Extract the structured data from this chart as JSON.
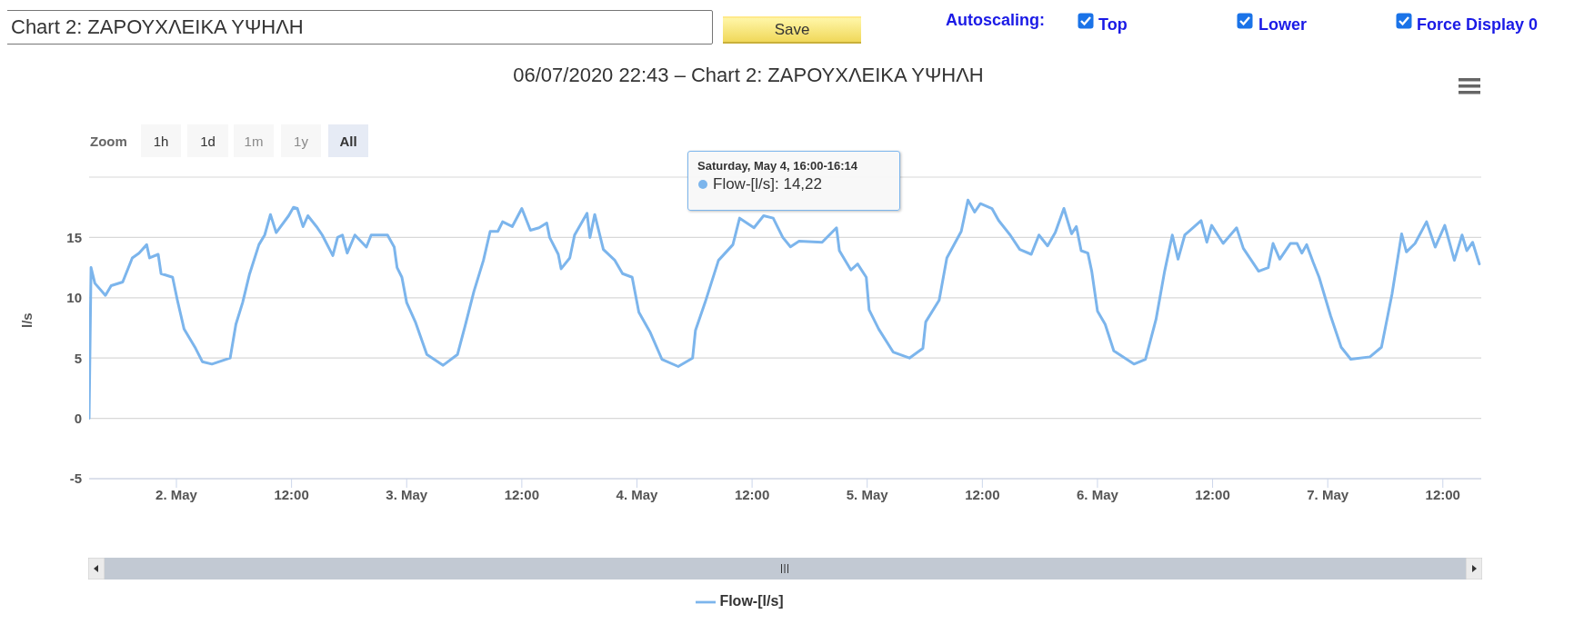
{
  "chart_data": {
    "type": "line",
    "title": "06/07/2020 22:43 – Chart 2: ΖΑΡΟΥΧΛΕΙΚΑ ΥΨΗΛΗ",
    "ylabel": "l/s",
    "x": [
      "2020-05-01T14:54",
      "2020-05-01T15:06",
      "2020-05-01T15:30",
      "2020-05-01T16:36",
      "2020-05-01T17:12",
      "2020-05-01T18:24",
      "2020-05-01T19:24",
      "2020-05-01T20:06",
      "2020-05-01T20:54",
      "2020-05-01T21:12",
      "2020-05-01T22:06",
      "2020-05-01T22:24",
      "2020-05-01T23:36",
      "2020-05-02T00:06",
      "2020-05-02T00:48",
      "2020-05-02T02:00",
      "2020-05-02T02:42",
      "2020-05-02T03:42",
      "2020-05-02T05:36",
      "2020-05-02T06:12",
      "2020-05-02T06:54",
      "2020-05-02T07:36",
      "2020-05-02T08:36",
      "2020-05-02T09:12",
      "2020-05-02T09:48",
      "2020-05-02T10:24",
      "2020-05-02T11:42",
      "2020-05-02T12:12",
      "2020-05-02T12:36",
      "2020-05-02T13:12",
      "2020-05-02T13:42",
      "2020-05-02T14:36",
      "2020-05-02T15:12",
      "2020-05-02T16:18",
      "2020-05-02T16:48",
      "2020-05-02T17:18",
      "2020-05-02T17:48",
      "2020-05-02T18:36",
      "2020-05-02T19:48",
      "2020-05-02T20:18",
      "2020-05-02T22:00",
      "2020-05-02T22:42",
      "2020-05-02T23:00",
      "2020-05-02T23:30",
      "2020-05-03T00:00",
      "2020-05-03T00:54",
      "2020-05-03T02:06",
      "2020-05-03T03:48",
      "2020-05-03T05:18",
      "2020-05-03T06:06",
      "2020-05-03T07:00",
      "2020-05-03T08:00",
      "2020-05-03T08:42",
      "2020-05-03T09:30",
      "2020-05-03T10:00",
      "2020-05-03T11:00",
      "2020-05-03T12:00",
      "2020-05-03T12:54",
      "2020-05-03T13:48",
      "2020-05-03T14:36",
      "2020-05-03T14:54",
      "2020-05-03T15:48",
      "2020-05-03T16:06",
      "2020-05-03T17:00",
      "2020-05-03T17:30",
      "2020-05-03T18:48",
      "2020-05-03T19:06",
      "2020-05-03T19:36",
      "2020-05-03T20:30",
      "2020-05-03T21:42",
      "2020-05-03T22:30",
      "2020-05-03T23:30",
      "2020-05-04T00:12",
      "2020-05-04T01:24",
      "2020-05-04T02:36",
      "2020-05-04T04:18",
      "2020-05-04T05:48",
      "2020-05-04T06:06",
      "2020-05-04T07:06",
      "2020-05-04T08:30",
      "2020-05-04T10:00",
      "2020-05-04T10:42",
      "2020-05-04T12:12",
      "2020-05-04T13:12",
      "2020-05-04T14:12",
      "2020-05-04T15:12",
      "2020-05-04T16:00",
      "2020-05-04T16:54",
      "2020-05-04T19:18",
      "2020-05-04T20:48",
      "2020-05-04T21:06",
      "2020-05-04T22:18",
      "2020-05-04T23:00",
      "2020-05-04T23:54",
      "2020-05-05T00:12",
      "2020-05-05T01:12",
      "2020-05-05T02:42",
      "2020-05-05T04:24",
      "2020-05-05T05:48",
      "2020-05-05T06:06",
      "2020-05-05T07:30",
      "2020-05-05T08:18",
      "2020-05-05T09:48",
      "2020-05-05T10:30",
      "2020-05-05T11:12",
      "2020-05-05T11:48",
      "2020-05-05T13:00",
      "2020-05-05T13:42",
      "2020-05-05T14:54",
      "2020-05-05T15:54",
      "2020-05-05T17:06",
      "2020-05-05T17:54",
      "2020-05-05T18:48",
      "2020-05-05T19:36",
      "2020-05-05T20:30",
      "2020-05-05T21:18",
      "2020-05-05T21:48",
      "2020-05-05T22:18",
      "2020-05-05T23:00",
      "2020-05-05T23:24",
      "2020-05-06T00:00",
      "2020-05-06T00:48",
      "2020-05-06T01:42",
      "2020-05-06T03:48",
      "2020-05-06T05:00",
      "2020-05-06T06:06",
      "2020-05-06T07:00",
      "2020-05-06T07:48",
      "2020-05-06T08:24",
      "2020-05-06T09:06",
      "2020-05-06T10:48",
      "2020-05-06T11:24",
      "2020-05-06T11:54",
      "2020-05-06T13:06",
      "2020-05-06T14:30",
      "2020-05-06T15:12",
      "2020-05-06T16:48",
      "2020-05-06T17:48",
      "2020-05-06T18:18",
      "2020-05-06T19:00",
      "2020-05-06T20:06",
      "2020-05-06T20:48",
      "2020-05-06T21:18",
      "2020-05-06T21:48",
      "2020-05-06T22:30",
      "2020-05-06T23:06",
      "2020-05-07T00:18",
      "2020-05-07T01:24",
      "2020-05-07T02:24",
      "2020-05-07T04:24",
      "2020-05-07T05:36",
      "2020-05-07T06:42",
      "2020-05-07T07:42",
      "2020-05-07T08:12",
      "2020-05-07T09:06",
      "2020-05-07T10:18",
      "2020-05-07T11:12",
      "2020-05-07T12:12",
      "2020-05-07T13:12",
      "2020-05-07T14:00",
      "2020-05-07T14:30",
      "2020-05-07T15:06",
      "2020-05-07T15:48"
    ],
    "series": [
      {
        "name": "Flow-[l/s]",
        "color": "#7cb5ec",
        "values": [
          0,
          12.5,
          11.2,
          10.2,
          11.0,
          11.3,
          13.3,
          13.7,
          14.4,
          13.3,
          13.6,
          12.0,
          11.7,
          9.8,
          7.4,
          5.8,
          4.7,
          4.5,
          5.0,
          7.8,
          9.6,
          11.9,
          14.4,
          15.2,
          16.9,
          15.4,
          16.8,
          17.5,
          17.4,
          15.9,
          16.8,
          15.9,
          15.2,
          13.5,
          15.0,
          15.2,
          13.7,
          15.2,
          14.2,
          15.2,
          15.2,
          14.2,
          12.5,
          11.7,
          9.6,
          8.0,
          5.3,
          4.4,
          5.3,
          7.7,
          10.5,
          13.1,
          15.5,
          15.5,
          16.3,
          15.9,
          17.4,
          15.6,
          15.8,
          16.2,
          15.0,
          13.6,
          12.4,
          13.3,
          15.2,
          17.0,
          15.0,
          16.9,
          14.0,
          13.1,
          12.0,
          11.7,
          8.8,
          7.1,
          4.9,
          4.3,
          5.0,
          7.3,
          9.6,
          13.1,
          14.4,
          16.6,
          15.8,
          16.8,
          16.6,
          15.0,
          14.22,
          14.7,
          14.6,
          15.8,
          13.9,
          12.3,
          12.8,
          11.7,
          9.0,
          7.4,
          5.5,
          5.0,
          5.8,
          8.0,
          9.8,
          13.3,
          15.5,
          18.1,
          17.1,
          17.8,
          17.4,
          16.4,
          15.2,
          14.0,
          13.6,
          15.2,
          14.3,
          15.4,
          17.4,
          15.3,
          15.9,
          13.9,
          13.7,
          12.2,
          8.9,
          7.8,
          5.6,
          4.5,
          4.9,
          8.2,
          12.2,
          15.2,
          13.2,
          15.2,
          16.4,
          14.6,
          16.0,
          14.5,
          15.8,
          14.1,
          12.2,
          12.5,
          14.5,
          13.2,
          14.5,
          14.5,
          13.7,
          14.4,
          12.9,
          11.7,
          8.5,
          5.9,
          4.9,
          5.1,
          5.9,
          10.3,
          15.3,
          13.8,
          14.5,
          16.3,
          14.2,
          16.0,
          13.1,
          15.2,
          13.9,
          14.6,
          12.8
        ]
      }
    ],
    "xlim": [
      "2020-05-01T14:54",
      "2020-05-07T16:00"
    ],
    "xticks": [
      {
        "value": "2020-05-02",
        "label": "2. May"
      },
      {
        "value": "2020-05-02T12:00",
        "label": "12:00"
      },
      {
        "value": "2020-05-03",
        "label": "3. May"
      },
      {
        "value": "2020-05-03T12:00",
        "label": "12:00"
      },
      {
        "value": "2020-05-04",
        "label": "4. May"
      },
      {
        "value": "2020-05-04T12:00",
        "label": "12:00"
      },
      {
        "value": "2020-05-05",
        "label": "5. May"
      },
      {
        "value": "2020-05-05T12:00",
        "label": "12:00"
      },
      {
        "value": "2020-05-06",
        "label": "6. May"
      },
      {
        "value": "2020-05-06T12:00",
        "label": "12:00"
      },
      {
        "value": "2020-05-07",
        "label": "7. May"
      },
      {
        "value": "2020-05-07T12:00",
        "label": "12:00"
      }
    ],
    "ylim": [
      -5,
      20
    ],
    "yticks": [
      -5,
      0,
      5,
      10,
      15,
      {
        "value": 20,
        "label": null
      }
    ],
    "grid": "y",
    "legend": "bottom",
    "marker": "none",
    "line_style": "solid",
    "annotations": [
      "Chart 2: ΖΑΡΟΥΧΛΕΙΚΑ ΥΨΗΛΗ",
      "Save",
      "Autoscaling:",
      "Top",
      "Lower",
      "Force Display 0",
      "Zoom",
      "1h",
      "1d",
      "1m",
      "1y",
      "All",
      "Saturday, May 4, 16:00-16:14",
      "Flow-[l/s]: 14,22"
    ]
  }
}
